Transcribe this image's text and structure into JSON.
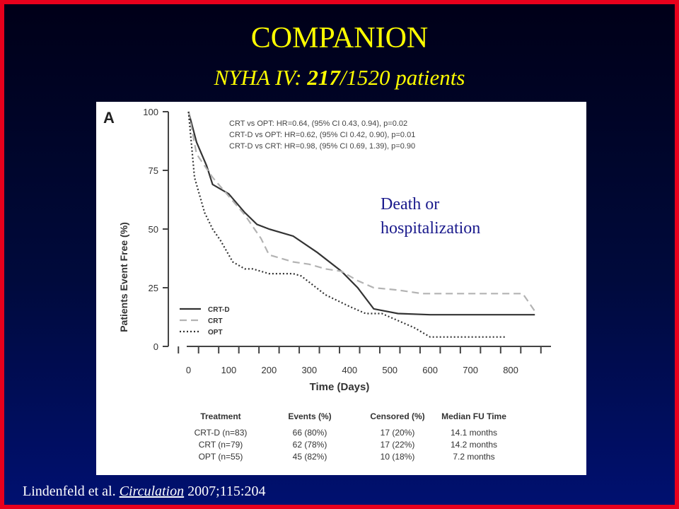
{
  "slide": {
    "title": "COMPANION",
    "subtitle_prefix": "NYHA IV: ",
    "subtitle_highlight": "217",
    "subtitle_suffix": "/1520 patients",
    "annotation_line1": "Death or",
    "annotation_line2": "hospitalization",
    "citation_authors": "Lindenfeld et al. ",
    "citation_journal": "Circulation",
    "citation_ref": " 2007;115:204",
    "background_color": "#000a3c",
    "border_color": "#e8001c",
    "title_color": "#ffff00"
  },
  "chart_data": {
    "type": "line",
    "panel_label": "A",
    "xlabel": "Time (Days)",
    "ylabel": "Patients Event Free (%)",
    "xlim": [
      -50,
      900
    ],
    "ylim": [
      0,
      100
    ],
    "x_ticks": [
      0,
      100,
      200,
      300,
      400,
      500,
      600,
      700,
      800
    ],
    "y_ticks": [
      0,
      25,
      50,
      75,
      100
    ],
    "stats": [
      "CRT vs OPT: HR=0.64, (95% CI 0.43, 0.94), p=0.02",
      "CRT-D vs OPT: HR=0.62, (95% CI 0.42, 0.90), p=0.01",
      "CRT-D vs CRT: HR=0.98, (95% CI 0.69, 1.39), p=0.90"
    ],
    "legend_position": "bottom-left",
    "series": [
      {
        "name": "CRT-D",
        "style": "solid",
        "color": "#333333",
        "x": [
          0,
          20,
          45,
          60,
          100,
          140,
          170,
          200,
          260,
          320,
          380,
          420,
          460,
          520,
          600,
          700,
          800,
          860
        ],
        "y": [
          100,
          87,
          77,
          69,
          65,
          57,
          52,
          50,
          47,
          40,
          32,
          25,
          16,
          14,
          13.5,
          13.5,
          13.5,
          13.5
        ]
      },
      {
        "name": "CRT",
        "style": "dashed",
        "color": "#b3b3b3",
        "x": [
          0,
          20,
          60,
          100,
          140,
          180,
          200,
          260,
          300,
          340,
          380,
          420,
          460,
          520,
          580,
          700,
          800,
          830,
          860
        ],
        "y": [
          100,
          82,
          72,
          64,
          56,
          46,
          39,
          36,
          35,
          33,
          32,
          28,
          25,
          24,
          22.5,
          22.5,
          22.5,
          22.5,
          15
        ]
      },
      {
        "name": "OPT",
        "style": "dotted",
        "color": "#333333",
        "x": [
          0,
          15,
          40,
          60,
          80,
          110,
          140,
          160,
          180,
          200,
          260,
          280,
          340,
          400,
          440,
          480,
          560,
          600,
          700,
          790
        ],
        "y": [
          100,
          72,
          57,
          50,
          45,
          36,
          33,
          33,
          32,
          31,
          31,
          30,
          22,
          17,
          14,
          14,
          8,
          4,
          4,
          4
        ]
      }
    ],
    "summary_table": {
      "headers": [
        "Treatment",
        "Events (%)",
        "Censored (%)",
        "Median FU Time"
      ],
      "rows": [
        [
          "CRT-D (n=83)",
          "66 (80%)",
          "17 (20%)",
          "14.1 months"
        ],
        [
          "CRT (n=79)",
          "62 (78%)",
          "17 (22%)",
          "14.2 months"
        ],
        [
          "OPT (n=55)",
          "45 (82%)",
          "10 (18%)",
          "7.2 months"
        ]
      ]
    }
  }
}
